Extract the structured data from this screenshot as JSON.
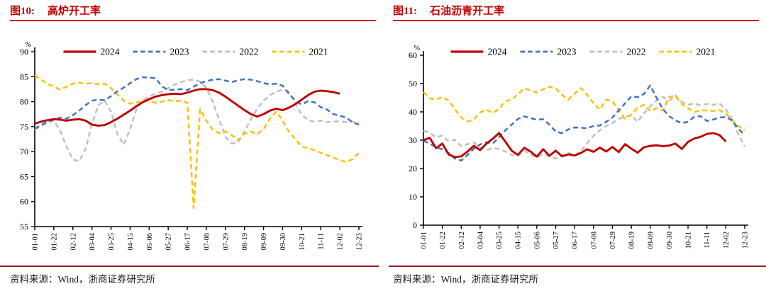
{
  "accent_colors": {
    "title_red": "#c00000",
    "rule_red": "#cc0000",
    "footer_rule_red": "#9e1b1b"
  },
  "chart_data": [
    {
      "type": "line",
      "figure_label": "图10:",
      "title": "高炉开工率",
      "unit": "%",
      "source": "资料来源：Wind，浙商证券研究所",
      "ylim": [
        55,
        90
      ],
      "yticks": [
        55,
        60,
        65,
        70,
        75,
        80,
        85,
        90
      ],
      "x_weeks": 52,
      "tick_every_weeks": 3,
      "x_tick_labels": [
        "01-01",
        "01-22",
        "02-12",
        "03-04",
        "03-25",
        "04-15",
        "05-06",
        "05-27",
        "06-17",
        "07-08",
        "07-29",
        "08-19",
        "09-09",
        "09-30",
        "10-21",
        "11-11",
        "12-02",
        "12-23"
      ],
      "legend_position": "top",
      "grid": false,
      "series": [
        {
          "name": "2024",
          "color": "#c00000",
          "dash": "solid",
          "values": [
            75.6,
            76.0,
            76.3,
            76.5,
            76.4,
            76.2,
            76.4,
            76.5,
            76.2,
            75.4,
            75.2,
            75.3,
            75.9,
            76.6,
            77.4,
            78.2,
            79.1,
            79.9,
            80.5,
            81.0,
            81.3,
            81.5,
            81.6,
            81.5,
            81.8,
            82.2,
            82.5,
            82.5,
            82.3,
            81.8,
            81.0,
            80.1,
            79.2,
            78.3,
            77.5,
            77.0,
            77.5,
            78.2,
            78.6,
            78.3,
            78.8,
            79.5,
            80.4,
            81.3,
            82.0,
            82.2,
            82.1,
            81.9,
            81.6
          ]
        },
        {
          "name": "2023",
          "color": "#4472c4",
          "dash": "dashed",
          "values": [
            74.6,
            75.3,
            76.0,
            76.4,
            76.8,
            76.6,
            77.3,
            78.2,
            79.3,
            80.2,
            80.4,
            80.3,
            81.1,
            82.1,
            82.8,
            83.7,
            84.5,
            84.9,
            84.8,
            84.7,
            83.1,
            82.3,
            82.4,
            82.5,
            82.3,
            83.0,
            83.7,
            84.1,
            84.4,
            84.5,
            84.2,
            83.9,
            84.3,
            84.5,
            84.4,
            84.1,
            83.7,
            83.5,
            83.6,
            83.2,
            81.6,
            80.2,
            79.4,
            80.1,
            79.9,
            78.9,
            78.4,
            77.5,
            77.2,
            76.8,
            75.9,
            75.4
          ]
        },
        {
          "name": "2022",
          "color": "#bfbfbf",
          "dash": "dashed",
          "values": [
            74.4,
            75.1,
            75.8,
            76.2,
            74.2,
            71.0,
            68.4,
            68.1,
            70.5,
            75.5,
            79.3,
            80.2,
            78.0,
            73.5,
            71.4,
            74.5,
            78.5,
            80.3,
            81.0,
            81.6,
            82.0,
            82.7,
            83.4,
            83.9,
            84.3,
            84.4,
            84.0,
            82.8,
            80.0,
            76.5,
            73.0,
            71.6,
            71.9,
            74.0,
            76.5,
            78.6,
            80.2,
            81.3,
            82.0,
            82.4,
            82.0,
            79.6,
            77.4,
            76.3,
            76.0,
            76.2,
            75.9,
            76.0,
            76.1,
            75.9,
            76.0,
            75.8
          ]
        },
        {
          "name": "2021",
          "color": "#ffc000",
          "dash": "dashed",
          "values": [
            85.3,
            84.4,
            83.6,
            83.0,
            82.4,
            83.0,
            83.6,
            83.8,
            83.6,
            83.7,
            83.5,
            83.6,
            82.7,
            81.4,
            80.2,
            79.6,
            79.8,
            80.3,
            80.1,
            79.8,
            80.0,
            80.3,
            80.1,
            80.2,
            79.8,
            58.7,
            78.5,
            76.2,
            74.4,
            73.7,
            74.1,
            73.3,
            72.3,
            73.6,
            74.0,
            73.5,
            74.5,
            76.6,
            78.0,
            76.2,
            74.0,
            72.5,
            71.0,
            70.7,
            70.3,
            69.8,
            69.3,
            68.8,
            68.3,
            67.9,
            68.5,
            69.8
          ]
        }
      ]
    },
    {
      "type": "line",
      "figure_label": "图11:",
      "title": "石油沥青开工率",
      "unit": "%",
      "source": "资料来源：Wind，浙商证券研究所",
      "ylim": [
        0,
        60
      ],
      "yticks": [
        0,
        10,
        20,
        30,
        40,
        50,
        60
      ],
      "x_weeks": 52,
      "tick_every_weeks": 3,
      "x_tick_labels": [
        "01-01",
        "01-22",
        "02-12",
        "03-04",
        "03-25",
        "04-15",
        "05-06",
        "05-27",
        "06-17",
        "07-08",
        "07-29",
        "08-19",
        "09-09",
        "09-30",
        "10-21",
        "11-11",
        "12-02",
        "12-23"
      ],
      "legend_position": "top",
      "grid": false,
      "series": [
        {
          "name": "2024",
          "color": "#c00000",
          "dash": "solid",
          "values": [
            30.0,
            30.8,
            27.2,
            28.8,
            25.0,
            24.0,
            24.3,
            26.0,
            28.0,
            26.5,
            28.8,
            30.5,
            32.5,
            29.5,
            26.3,
            24.8,
            27.3,
            26.0,
            24.2,
            26.8,
            24.5,
            26.3,
            24.3,
            25.0,
            24.6,
            25.5,
            26.8,
            25.9,
            27.4,
            26.0,
            27.6,
            25.8,
            28.6,
            27.0,
            25.6,
            27.5,
            28.0,
            28.2,
            27.9,
            28.1,
            28.8,
            26.9,
            29.4,
            30.6,
            31.2,
            32.2,
            32.5,
            31.8,
            29.5
          ]
        },
        {
          "name": "2023",
          "color": "#4472c4",
          "dash": "dashed",
          "values": [
            29.8,
            28.8,
            27.5,
            26.8,
            25.5,
            23.5,
            22.8,
            24.8,
            27.0,
            28.5,
            29.3,
            28.8,
            31.0,
            33.5,
            35.5,
            37.5,
            38.4,
            37.8,
            37.2,
            37.4,
            35.5,
            33.0,
            32.5,
            33.8,
            34.5,
            34.4,
            34.2,
            35.0,
            35.2,
            36.5,
            38.0,
            40.5,
            43.0,
            45.5,
            45.2,
            46.3,
            49.3,
            45.0,
            41.0,
            38.5,
            37.0,
            36.0,
            36.5,
            38.3,
            38.5,
            36.8,
            37.3,
            38.0,
            38.2,
            37.0,
            34.0,
            31.8
          ]
        },
        {
          "name": "2022",
          "color": "#bfbfbf",
          "dash": "dashed",
          "values": [
            33.4,
            32.6,
            31.0,
            31.6,
            29.6,
            30.2,
            27.9,
            28.6,
            29.2,
            27.5,
            26.5,
            27.2,
            26.9,
            26.0,
            24.8,
            24.4,
            26.3,
            25.0,
            23.8,
            25.2,
            24.2,
            23.5,
            24.8,
            25.5,
            24.6,
            26.2,
            29.0,
            31.5,
            33.5,
            35.0,
            36.0,
            37.5,
            38.3,
            38.8,
            36.5,
            39.5,
            42.0,
            44.0,
            45.3,
            44.0,
            45.8,
            43.5,
            42.5,
            43.0,
            42.3,
            42.8,
            42.5,
            43.0,
            41.0,
            37.5,
            32.0,
            27.8
          ]
        },
        {
          "name": "2021",
          "color": "#ffc000",
          "dash": "dashed",
          "values": [
            47.0,
            44.8,
            44.3,
            45.3,
            44.0,
            41.0,
            38.0,
            36.6,
            37.3,
            39.8,
            40.8,
            39.6,
            41.0,
            43.8,
            44.3,
            46.3,
            48.3,
            47.6,
            46.8,
            48.0,
            48.9,
            48.3,
            46.0,
            44.3,
            46.5,
            48.4,
            46.0,
            43.0,
            40.8,
            44.3,
            43.8,
            40.5,
            37.6,
            39.0,
            41.5,
            42.5,
            40.3,
            41.3,
            40.5,
            45.3,
            45.6,
            42.8,
            41.3,
            39.9,
            40.6,
            40.5,
            40.3,
            40.6,
            39.5,
            37.0,
            35.0,
            33.5
          ]
        }
      ]
    }
  ]
}
